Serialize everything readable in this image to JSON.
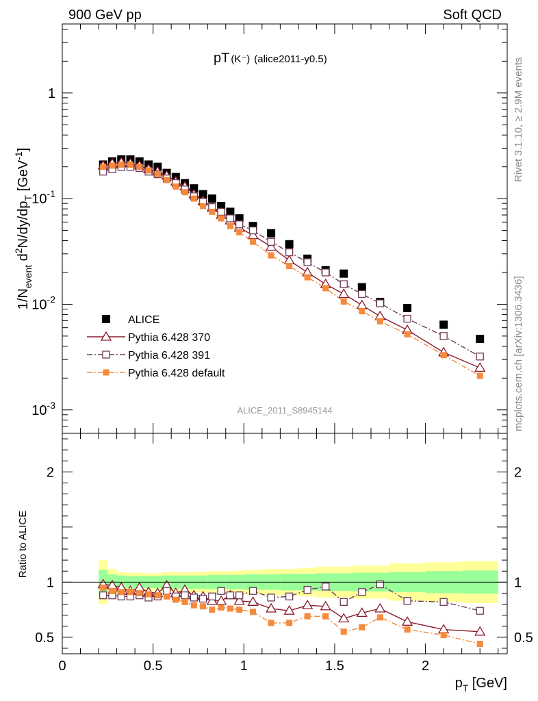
{
  "header": {
    "left": "900 GeV pp",
    "right": "Soft QCD"
  },
  "side_labels": {
    "rivet": "Rivet 3.1.10, ≥ 2.9M events",
    "mcplots": "mcplots.cern.ch [arXiv:1306.3436]"
  },
  "plot_title": {
    "main": "pT",
    "particle": "(K⁻)",
    "tag": "(alice2011-y0.5)"
  },
  "watermark": "ALICE_2011_S8945144",
  "colors": {
    "alice": "#000000",
    "p370": "#8b1a2c",
    "p391": "#6b3a55",
    "pdefault": "#f58a3c",
    "band_outer": "#ffff99",
    "band_inner": "#99ff99"
  },
  "chart_data": [
    {
      "type": "scatter",
      "panel": "main",
      "ylabel_parts": {
        "prefix": "1/N",
        "sub_event": "event",
        "mid": " d",
        "sup2": "2",
        "rest": "N/dy/dp",
        "sub_T": "T",
        "unit": " [GeV",
        "sup_unit": "-1",
        "close": "]"
      },
      "yscale": "log",
      "ylim": [
        0.0006,
        4.5
      ],
      "xlim": [
        0,
        2.45
      ],
      "y_ticks": [
        {
          "value": 0.001,
          "base": "10",
          "exp": "-3"
        },
        {
          "value": 0.01,
          "base": "10",
          "exp": "-2"
        },
        {
          "value": 0.1,
          "base": "10",
          "exp": "-1"
        },
        {
          "value": 1,
          "label": "1"
        }
      ],
      "legend": {
        "placement": "bottom-left",
        "entries": [
          "ALICE",
          "Pythia 6.428 370",
          "Pythia 6.428 391",
          "Pythia 6.428 default"
        ]
      },
      "x": [
        0.225,
        0.275,
        0.325,
        0.375,
        0.425,
        0.475,
        0.525,
        0.575,
        0.625,
        0.675,
        0.725,
        0.775,
        0.825,
        0.875,
        0.925,
        0.975,
        1.05,
        1.15,
        1.25,
        1.35,
        1.45,
        1.55,
        1.65,
        1.75,
        1.9,
        2.1,
        2.3
      ],
      "series": [
        {
          "name": "ALICE",
          "marker": "square-filled",
          "values": [
            0.21,
            0.225,
            0.235,
            0.235,
            0.225,
            0.21,
            0.2,
            0.175,
            0.16,
            0.14,
            0.125,
            0.11,
            0.1,
            0.085,
            0.075,
            0.065,
            0.055,
            0.047,
            0.037,
            0.027,
            0.021,
            0.0195,
            0.0145,
            0.0105,
            0.0092,
            0.0064,
            0.0047
          ]
        },
        {
          "name": "Pythia 6.428 370",
          "marker": "triangle-open",
          "line": "solid",
          "values": [
            0.205,
            0.215,
            0.22,
            0.215,
            0.205,
            0.19,
            0.18,
            0.165,
            0.145,
            0.13,
            0.11,
            0.095,
            0.082,
            0.07,
            0.062,
            0.053,
            0.045,
            0.035,
            0.026,
            0.02,
            0.0155,
            0.0125,
            0.0098,
            0.0077,
            0.0057,
            0.0035,
            0.0025
          ]
        },
        {
          "name": "Pythia 6.428 391",
          "marker": "square-open",
          "line": "dashdot",
          "values": [
            0.18,
            0.19,
            0.2,
            0.2,
            0.195,
            0.18,
            0.17,
            0.155,
            0.14,
            0.122,
            0.105,
            0.093,
            0.083,
            0.075,
            0.065,
            0.057,
            0.05,
            0.039,
            0.031,
            0.025,
            0.02,
            0.0155,
            0.0125,
            0.0102,
            0.0073,
            0.005,
            0.0032
          ]
        },
        {
          "name": "Pythia 6.428 default",
          "marker": "square-filled-small",
          "line": "dashdot",
          "values": [
            0.2,
            0.205,
            0.21,
            0.21,
            0.2,
            0.185,
            0.17,
            0.15,
            0.13,
            0.115,
            0.1,
            0.085,
            0.075,
            0.065,
            0.055,
            0.048,
            0.039,
            0.029,
            0.023,
            0.018,
            0.0142,
            0.0106,
            0.0086,
            0.0069,
            0.0052,
            0.0033,
            0.0021
          ]
        }
      ]
    },
    {
      "type": "line",
      "panel": "ratio",
      "ylabel": "Ratio to ALICE",
      "xlabel_parts": {
        "p": "p",
        "sub": "T",
        "unit": " [GeV]"
      },
      "ylim": [
        0.35,
        2.35
      ],
      "xlim": [
        0,
        2.45
      ],
      "x_ticks": [
        {
          "value": 0,
          "label": "0"
        },
        {
          "value": 0.5,
          "label": "0.5"
        },
        {
          "value": 1,
          "label": "1"
        },
        {
          "value": 1.5,
          "label": "1.5"
        },
        {
          "value": 2,
          "label": "2"
        }
      ],
      "y_ticks": [
        {
          "value": 0.5,
          "label": "0.5"
        },
        {
          "value": 1,
          "label": "1"
        },
        {
          "value": 2,
          "label": "2"
        }
      ],
      "bins": [
        [
          0.2,
          0.25
        ],
        [
          0.25,
          0.3
        ],
        [
          0.3,
          0.35
        ],
        [
          0.35,
          0.4
        ],
        [
          0.4,
          0.45
        ],
        [
          0.45,
          0.5
        ],
        [
          0.5,
          0.55
        ],
        [
          0.55,
          0.6
        ],
        [
          0.6,
          0.65
        ],
        [
          0.65,
          0.7
        ],
        [
          0.7,
          0.75
        ],
        [
          0.75,
          0.8
        ],
        [
          0.8,
          0.85
        ],
        [
          0.85,
          0.9
        ],
        [
          0.9,
          0.95
        ],
        [
          0.95,
          1.0
        ],
        [
          1.0,
          1.1
        ],
        [
          1.1,
          1.2
        ],
        [
          1.2,
          1.3
        ],
        [
          1.3,
          1.4
        ],
        [
          1.4,
          1.5
        ],
        [
          1.5,
          1.6
        ],
        [
          1.6,
          1.7
        ],
        [
          1.7,
          1.8
        ],
        [
          1.8,
          2.0
        ],
        [
          2.0,
          2.2
        ],
        [
          2.2,
          2.4
        ]
      ],
      "band_outer_halfwidth": [
        0.2,
        0.12,
        0.09,
        0.085,
        0.085,
        0.08,
        0.08,
        0.09,
        0.09,
        0.09,
        0.095,
        0.095,
        0.1,
        0.1,
        0.1,
        0.105,
        0.11,
        0.12,
        0.12,
        0.13,
        0.14,
        0.14,
        0.15,
        0.15,
        0.17,
        0.18,
        0.19
      ],
      "band_inner_halfwidth": [
        0.11,
        0.07,
        0.06,
        0.055,
        0.055,
        0.055,
        0.055,
        0.06,
        0.06,
        0.06,
        0.06,
        0.06,
        0.065,
        0.065,
        0.065,
        0.065,
        0.07,
        0.07,
        0.075,
        0.075,
        0.08,
        0.08,
        0.085,
        0.085,
        0.09,
        0.1,
        0.105
      ],
      "x": [
        0.225,
        0.275,
        0.325,
        0.375,
        0.425,
        0.475,
        0.525,
        0.575,
        0.625,
        0.675,
        0.725,
        0.775,
        0.825,
        0.875,
        0.925,
        0.975,
        1.05,
        1.15,
        1.25,
        1.35,
        1.45,
        1.55,
        1.65,
        1.75,
        1.9,
        2.1,
        2.3
      ],
      "series": [
        {
          "name": "Pythia 6.428 370",
          "values": [
            0.98,
            0.97,
            0.95,
            0.92,
            0.95,
            0.91,
            0.9,
            0.97,
            0.9,
            0.93,
            0.88,
            0.87,
            0.83,
            0.83,
            0.88,
            0.83,
            0.82,
            0.76,
            0.74,
            0.79,
            0.78,
            0.67,
            0.72,
            0.76,
            0.64,
            0.57,
            0.55
          ]
        },
        {
          "name": "Pythia 6.428 391",
          "values": [
            0.88,
            0.88,
            0.87,
            0.87,
            0.88,
            0.86,
            0.87,
            0.92,
            0.87,
            0.88,
            0.86,
            0.85,
            0.87,
            0.92,
            0.88,
            0.88,
            0.92,
            0.86,
            0.87,
            0.93,
            0.96,
            0.82,
            0.91,
            0.98,
            0.83,
            0.82,
            0.74
          ]
        },
        {
          "name": "Pythia 6.428 default",
          "values": [
            0.95,
            0.92,
            0.91,
            0.91,
            0.9,
            0.89,
            0.88,
            0.87,
            0.84,
            0.82,
            0.79,
            0.78,
            0.75,
            0.77,
            0.76,
            0.75,
            0.73,
            0.63,
            0.63,
            0.69,
            0.69,
            0.55,
            0.59,
            0.68,
            0.57,
            0.52,
            0.44
          ]
        }
      ]
    }
  ]
}
